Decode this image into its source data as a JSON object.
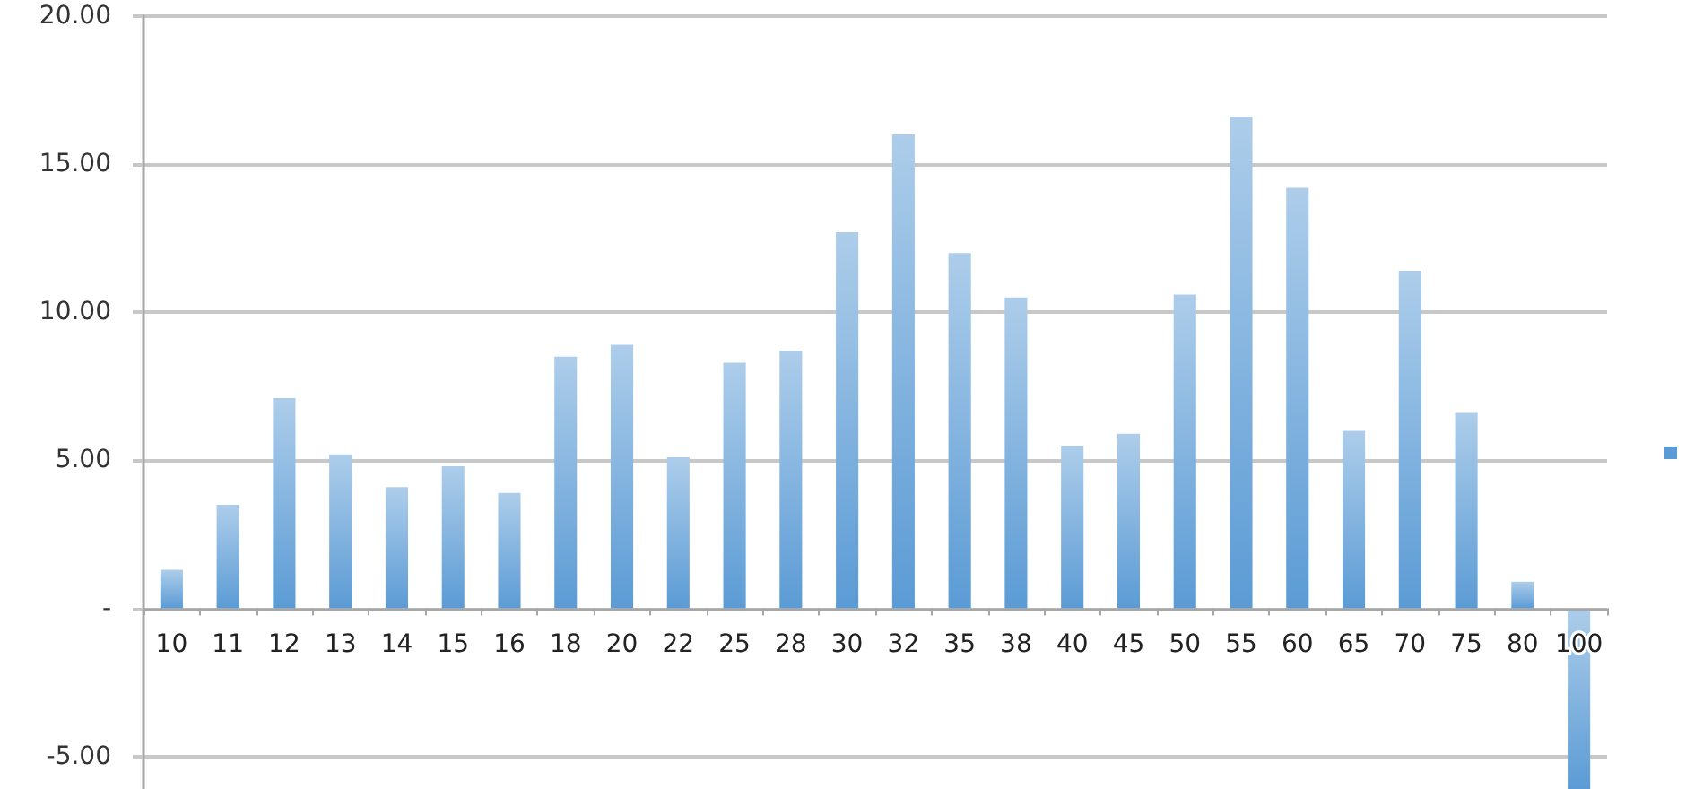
{
  "chart_data": {
    "type": "bar",
    "categories": [
      "10",
      "11",
      "12",
      "13",
      "14",
      "15",
      "16",
      "18",
      "20",
      "22",
      "25",
      "28",
      "30",
      "32",
      "35",
      "38",
      "40",
      "45",
      "50",
      "55",
      "60",
      "65",
      "70",
      "75",
      "80",
      "100"
    ],
    "values": [
      1.3,
      3.5,
      7.1,
      5.2,
      4.1,
      4.8,
      3.9,
      8.5,
      8.9,
      5.1,
      8.3,
      8.7,
      12.7,
      16.0,
      12.0,
      10.5,
      5.5,
      5.9,
      10.6,
      16.6,
      14.2,
      6.0,
      11.4,
      6.6,
      0.9,
      -6.1
    ],
    "color": "#5b9bd5",
    "ylim": [
      -6.1,
      20
    ],
    "yticks": [
      {
        "value": -5,
        "label": "-5.00"
      },
      {
        "value": 0,
        "label": "-"
      },
      {
        "value": 5,
        "label": "5.00"
      },
      {
        "value": 10,
        "label": "10.00"
      },
      {
        "value": 15,
        "label": "15.00"
      },
      {
        "value": 20,
        "label": "20.00"
      }
    ],
    "grid": "y"
  }
}
